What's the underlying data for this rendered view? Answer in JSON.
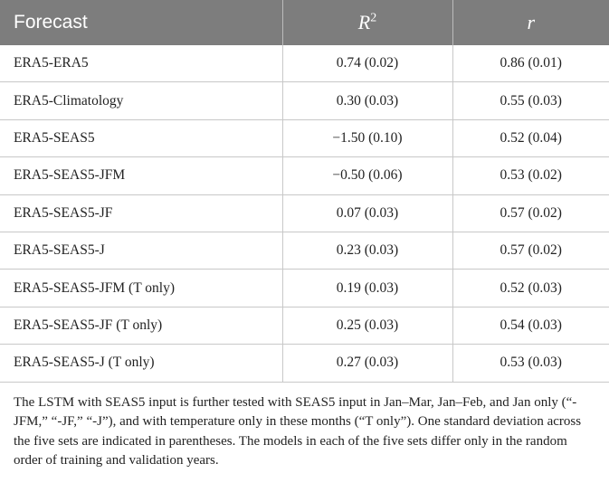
{
  "table": {
    "header": {
      "forecast": "Forecast",
      "r2": {
        "base": "R",
        "sup": "2"
      },
      "r": "r"
    },
    "rows": [
      [
        "ERA5-ERA5",
        "0.74 (0.02)",
        "0.86 (0.01)"
      ],
      [
        "ERA5-Climatology",
        "0.30 (0.03)",
        "0.55 (0.03)"
      ],
      [
        "ERA5-SEAS5",
        "−1.50 (0.10)",
        "0.52 (0.04)"
      ],
      [
        "ERA5-SEAS5-JFM",
        "−0.50 (0.06)",
        "0.53 (0.02)"
      ],
      [
        "ERA5-SEAS5-JF",
        "0.07 (0.03)",
        "0.57 (0.02)"
      ],
      [
        "ERA5-SEAS5-J",
        "0.23 (0.03)",
        "0.57 (0.02)"
      ],
      [
        "ERA5-SEAS5-JFM (T only)",
        "0.19 (0.03)",
        "0.52 (0.03)"
      ],
      [
        "ERA5-SEAS5-JF (T only)",
        "0.25 (0.03)",
        "0.54 (0.03)"
      ],
      [
        "ERA5-SEAS5-J (T only)",
        "0.27 (0.03)",
        "0.53 (0.03)"
      ]
    ]
  },
  "caption": "The LSTM with SEAS5 input is further tested with SEAS5 input in Jan–Mar, Jan–Feb, and Jan only (“-JFM,” “-JF,” “-J”), and with temperature only in these months (“T only”). One standard deviation across the five sets are indicated in parentheses. The models in each of the five sets differ only in the random order of training and validation years."
}
